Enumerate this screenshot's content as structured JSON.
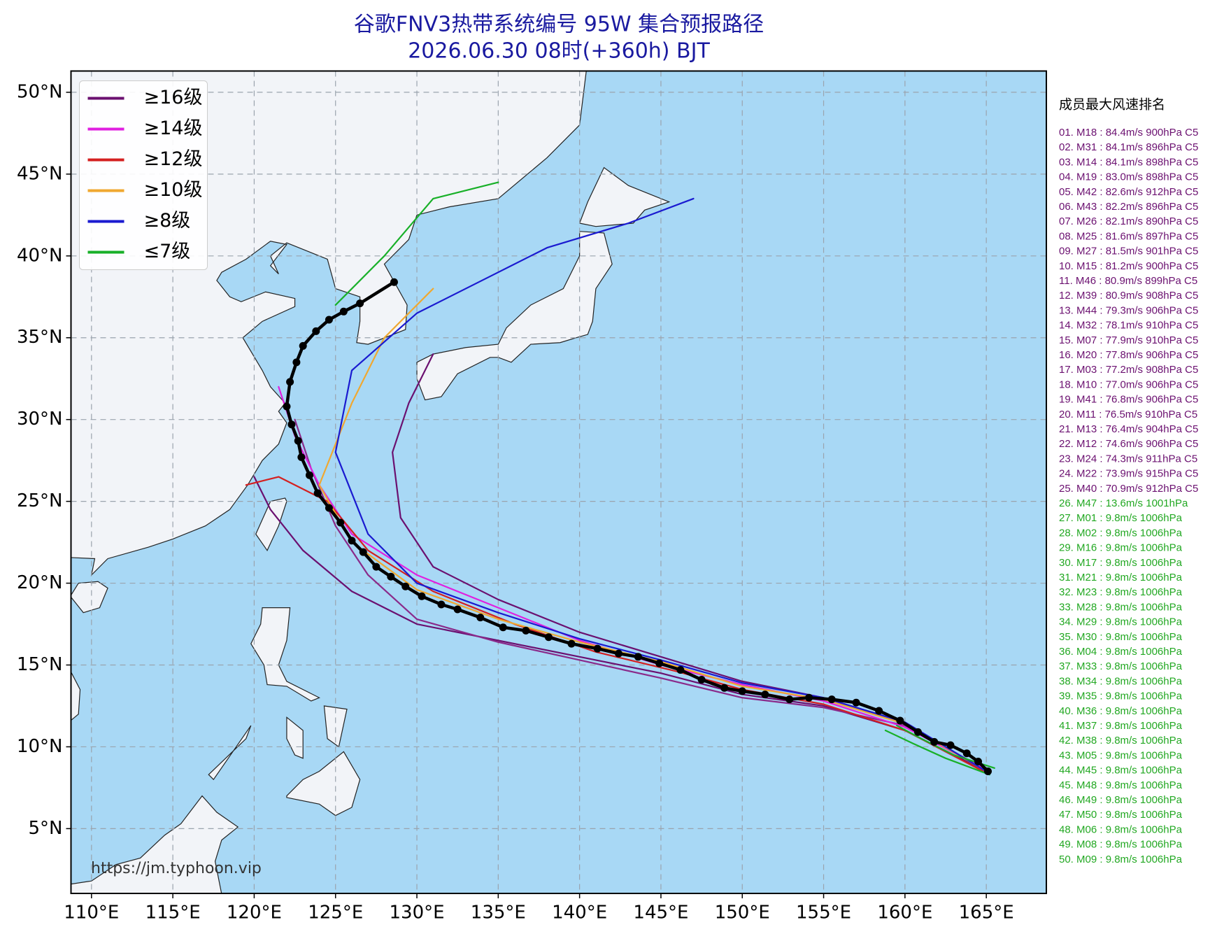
{
  "chart_data": {
    "type": "track-map",
    "title": "谷歌FNV3热带系统编号 95W 集合预报路径",
    "subtitle": "2026.06.30 08时(+360h) BJT",
    "source": "https://jm.typhoon.vip",
    "xlim": [
      108.74,
      168.69
    ],
    "ylim": [
      1.04,
      51.3
    ],
    "xticks": [
      {
        "value": 110,
        "label": "110°E"
      },
      {
        "value": 115,
        "label": "115°E"
      },
      {
        "value": 120,
        "label": "120°E"
      },
      {
        "value": 125,
        "label": "125°E"
      },
      {
        "value": 130,
        "label": "130°E"
      },
      {
        "value": 135,
        "label": "135°E"
      },
      {
        "value": 140,
        "label": "140°E"
      },
      {
        "value": 145,
        "label": "145°E"
      },
      {
        "value": 150,
        "label": "150°E"
      },
      {
        "value": 155,
        "label": "155°E"
      },
      {
        "value": 160,
        "label": "160°E"
      },
      {
        "value": 165,
        "label": "165°E"
      }
    ],
    "yticks": [
      {
        "value": 5,
        "label": "5°N"
      },
      {
        "value": 10,
        "label": "10°N"
      },
      {
        "value": 15,
        "label": "15°N"
      },
      {
        "value": 20,
        "label": "20°N"
      },
      {
        "value": 25,
        "label": "25°N"
      },
      {
        "value": 30,
        "label": "30°N"
      },
      {
        "value": 35,
        "label": "35°N"
      },
      {
        "value": 40,
        "label": "40°N"
      },
      {
        "value": 45,
        "label": "45°N"
      },
      {
        "value": 50,
        "label": "50°N"
      }
    ],
    "grid": true,
    "legend_position": "upper left",
    "legend": [
      {
        "label": "≥16级",
        "color": "#6b1070"
      },
      {
        "label": "≥14级",
        "color": "#e020e0"
      },
      {
        "label": "≥12级",
        "color": "#d42020"
      },
      {
        "label": "≥10级",
        "color": "#f0a830"
      },
      {
        "label": "≥8级",
        "color": "#1a1ad0"
      },
      {
        "label": "≤7级",
        "color": "#18b028"
      }
    ],
    "mean_track": {
      "color": "#000000",
      "lon": [
        165.1,
        164.5,
        163.8,
        162.8,
        161.8,
        160.8,
        159.7,
        158.4,
        157.0,
        155.5,
        154.1,
        152.9,
        151.4,
        150.0,
        148.9,
        147.5,
        146.2,
        144.9,
        143.6,
        142.4,
        141.1,
        139.5,
        138.1,
        136.7,
        135.3,
        133.9,
        132.5,
        131.5,
        130.3,
        129.3,
        128.4,
        127.5,
        126.7,
        126.0,
        125.3,
        124.6,
        123.9,
        123.4,
        122.9,
        122.7,
        122.3,
        122.0,
        122.2,
        122.6,
        123.0,
        123.8,
        124.6,
        125.5,
        126.5,
        128.6
      ],
      "lat": [
        8.5,
        9.1,
        9.6,
        10.1,
        10.3,
        10.9,
        11.6,
        12.2,
        12.7,
        12.9,
        13.0,
        12.9,
        13.2,
        13.4,
        13.6,
        14.1,
        14.7,
        15.1,
        15.5,
        15.7,
        16.0,
        16.3,
        16.7,
        17.1,
        17.3,
        17.9,
        18.4,
        18.7,
        19.2,
        19.8,
        20.4,
        21.0,
        21.9,
        22.6,
        23.7,
        24.6,
        25.5,
        26.6,
        27.7,
        28.7,
        29.7,
        30.8,
        32.3,
        33.5,
        34.5,
        35.4,
        36.1,
        36.6,
        37.1,
        38.4
      ]
    },
    "tracks": [
      {
        "color": "#6b1070",
        "lon": [
          165,
          160,
          155,
          150,
          145,
          140,
          135,
          130,
          126,
          123,
          121,
          120
        ],
        "lat": [
          8.5,
          11,
          12.5,
          13.2,
          14.5,
          15.5,
          16.5,
          17.5,
          19.5,
          22,
          24.5,
          26.5
        ]
      },
      {
        "color": "#6b1070",
        "lon": [
          165,
          160,
          155,
          150,
          145,
          140,
          135,
          131,
          129,
          128.5,
          129.5,
          131
        ],
        "lat": [
          8.5,
          11.5,
          13,
          14,
          15.5,
          17,
          19,
          21,
          24,
          28,
          31,
          34
        ]
      },
      {
        "color": "#8a2a8a",
        "lon": [
          165,
          160,
          155,
          150,
          145,
          140,
          135,
          130,
          127,
          125,
          123.5,
          122.5
        ],
        "lat": [
          8.6,
          11.3,
          12.4,
          13,
          14.2,
          15.3,
          16.4,
          17.8,
          20.5,
          23.5,
          27,
          30
        ]
      },
      {
        "color": "#e020e0",
        "lon": [
          165,
          160,
          155,
          150,
          145,
          140,
          135,
          130,
          126,
          124,
          122.5,
          121.5
        ],
        "lat": [
          8.6,
          11.2,
          12.8,
          13.8,
          15,
          16.5,
          18.5,
          20.5,
          23,
          26,
          29,
          32
        ]
      },
      {
        "color": "#d42020",
        "lon": [
          165,
          160,
          155,
          150,
          146,
          141,
          136,
          131,
          127,
          124.5,
          121.5,
          119.5
        ],
        "lat": [
          8.4,
          11,
          12.6,
          13.5,
          14.6,
          15.8,
          17.5,
          19.5,
          22,
          25,
          26.5,
          26
        ]
      },
      {
        "color": "#f0a830",
        "lon": [
          165,
          160,
          155,
          150,
          145,
          140,
          135,
          130,
          126,
          124,
          126,
          128,
          131
        ],
        "lat": [
          8.5,
          11.4,
          12.9,
          13.7,
          15.2,
          16.4,
          17.8,
          19.6,
          22.5,
          26,
          31,
          35,
          38
        ]
      },
      {
        "color": "#1a1ad0",
        "lon": [
          165,
          160,
          155,
          150,
          145,
          140,
          135,
          130,
          127,
          125,
          126,
          130,
          135,
          138,
          143,
          147
        ],
        "lat": [
          8.5,
          11.5,
          13,
          13.9,
          15.3,
          16.6,
          18.2,
          20,
          23,
          28,
          33,
          36.5,
          39,
          40.5,
          42,
          43.5
        ]
      },
      {
        "color": "#18b028",
        "lon": [
          125,
          128,
          131,
          135
        ],
        "lat": [
          37,
          40,
          43.5,
          44.5
        ]
      },
      {
        "color": "#18b028",
        "lon": [
          165.5,
          163,
          161,
          159.5
        ],
        "lat": [
          8.7,
          9.5,
          10.5,
          11.3
        ]
      },
      {
        "color": "#18b028",
        "lon": [
          165.2,
          162.5,
          160.5,
          158.8
        ],
        "lat": [
          8.3,
          9.3,
          10.2,
          11
        ]
      }
    ],
    "ranking": {
      "title": "成员最大风速排名",
      "groups": [
        {
          "color": "#6b1070",
          "items": [
            "01. M18 : 84.4m/s 900hPa C5",
            "02. M31 : 84.1m/s 896hPa C5",
            "03. M14 : 84.1m/s 898hPa C5",
            "04. M19 : 83.0m/s 898hPa C5",
            "05. M42 : 82.6m/s 912hPa C5",
            "06. M43 : 82.2m/s 896hPa C5",
            "07. M26 : 82.1m/s 890hPa C5",
            "08. M25 : 81.6m/s 897hPa C5",
            "09. M27 : 81.5m/s 901hPa C5",
            "10. M15 : 81.2m/s 900hPa C5",
            "11. M46 : 80.9m/s 899hPa C5",
            "12. M39 : 80.9m/s 908hPa C5",
            "13. M44 : 79.3m/s 906hPa C5",
            "14. M32 : 78.1m/s 910hPa C5",
            "15. M07 : 77.9m/s 910hPa C5",
            "16. M20 : 77.8m/s 906hPa C5",
            "17. M03 : 77.2m/s 908hPa C5",
            "18. M10 : 77.0m/s 906hPa C5",
            "19. M41 : 76.8m/s 906hPa C5",
            "20. M11 : 76.5m/s 910hPa C5",
            "21. M13 : 76.4m/s 904hPa C5",
            "22. M12 : 74.6m/s 906hPa C5",
            "23. M24 : 74.3m/s 911hPa C5",
            "24. M22 : 73.9m/s 915hPa C5",
            "25. M40 : 70.9m/s 912hPa C5"
          ]
        },
        {
          "color": "#22a822",
          "items": [
            "26. M47 : 13.6m/s 1001hPa",
            "27. M01 : 9.8m/s 1006hPa",
            "28. M02 : 9.8m/s 1006hPa",
            "29. M16 : 9.8m/s 1006hPa",
            "30. M17 : 9.8m/s 1006hPa",
            "31. M21 : 9.8m/s 1006hPa",
            "32. M23 : 9.8m/s 1006hPa",
            "33. M28 : 9.8m/s 1006hPa",
            "34. M29 : 9.8m/s 1006hPa",
            "35. M30 : 9.8m/s 1006hPa",
            "36. M04 : 9.8m/s 1006hPa",
            "37. M33 : 9.8m/s 1006hPa",
            "38. M34 : 9.8m/s 1006hPa",
            "39. M35 : 9.8m/s 1006hPa",
            "40. M36 : 9.8m/s 1006hPa",
            "41. M37 : 9.8m/s 1006hPa",
            "42. M38 : 9.8m/s 1006hPa",
            "43. M05 : 9.8m/s 1006hPa",
            "44. M45 : 9.8m/s 1006hPa",
            "45. M48 : 9.8m/s 1006hPa",
            "46. M49 : 9.8m/s 1006hPa",
            "47. M50 : 9.8m/s 1006hPa",
            "48. M06 : 9.8m/s 1006hPa",
            "49. M08 : 9.8m/s 1006hPa",
            "50. M09 : 9.8m/s 1006hPa"
          ]
        }
      ]
    }
  }
}
